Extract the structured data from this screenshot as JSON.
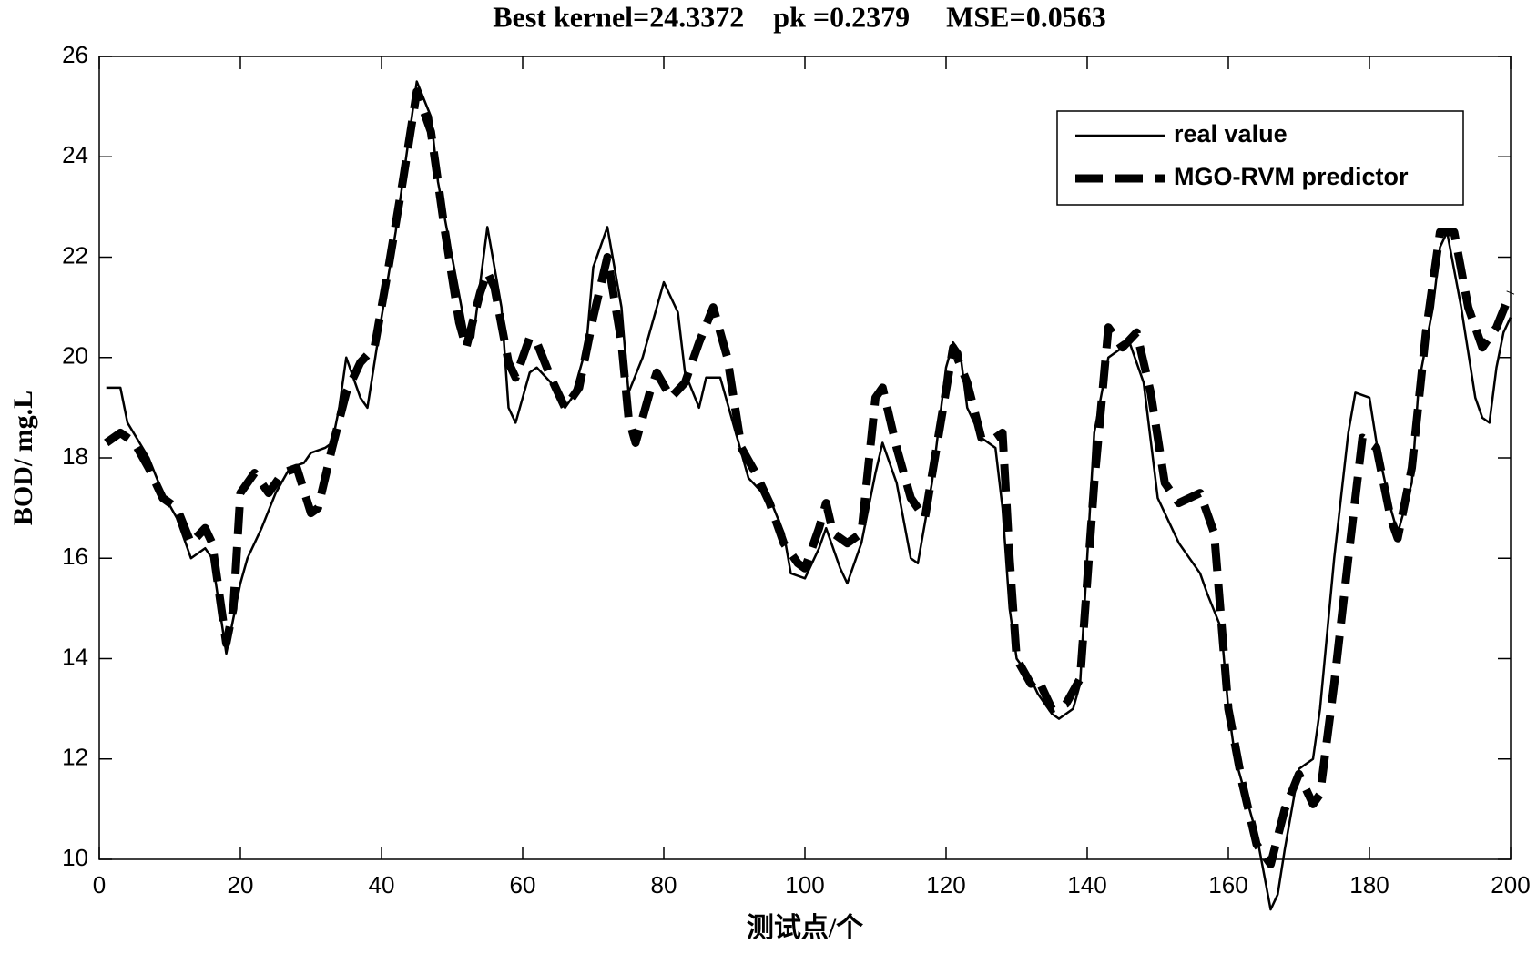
{
  "chart_data": {
    "type": "line",
    "title": "Best kernel=24.3372    pk =0.2379     MSE=0.0563",
    "xlabel": "测试点/个",
    "ylabel": "BOD/ mg.L",
    "xlim": [
      0,
      200
    ],
    "xticks": [
      0,
      20,
      40,
      60,
      80,
      100,
      120,
      140,
      160,
      180,
      200
    ],
    "ylim": [
      10,
      26
    ],
    "yticks": [
      10,
      12,
      14,
      16,
      18,
      20,
      22,
      24,
      26
    ],
    "legend": "upper right",
    "series": [
      {
        "name": "real value",
        "color": "#000000",
        "dash": "solid",
        "x": [
          1,
          3,
          4,
          7,
          9,
          11,
          13,
          15,
          16,
          18,
          20,
          21,
          23,
          25,
          27,
          29,
          30,
          32,
          33,
          34,
          35,
          37,
          38,
          40,
          42,
          44,
          45,
          47,
          48,
          50,
          52,
          53,
          54,
          55,
          57,
          58,
          59,
          61,
          62,
          64,
          66,
          67,
          69,
          70,
          72,
          74,
          75,
          77,
          79,
          80,
          82,
          83,
          85,
          86,
          88,
          90,
          92,
          94,
          95,
          97,
          98,
          100,
          102,
          103,
          105,
          106,
          108,
          110,
          111,
          113,
          115,
          116,
          118,
          120,
          121,
          122,
          123,
          125,
          127,
          128,
          129,
          130,
          132,
          133,
          135,
          136,
          138,
          139,
          140,
          141,
          143,
          145,
          146,
          148,
          150,
          153,
          156,
          157,
          159,
          160,
          161,
          164,
          166,
          167,
          168,
          170,
          171,
          172,
          173,
          175,
          177,
          178,
          180,
          181,
          183,
          184,
          186,
          187,
          189,
          190,
          191,
          193,
          195,
          196,
          197,
          198,
          199,
          200
        ],
        "values": [
          19.4,
          19.4,
          18.7,
          18.0,
          17.3,
          16.8,
          16.0,
          16.2,
          16.0,
          14.1,
          15.5,
          16.0,
          16.6,
          17.3,
          17.8,
          17.9,
          18.1,
          18.2,
          18.3,
          19.0,
          20.0,
          19.2,
          19.0,
          20.8,
          22.5,
          24.5,
          25.5,
          24.8,
          23.5,
          22.0,
          20.5,
          20.4,
          21.5,
          22.6,
          21.0,
          19.0,
          18.7,
          19.7,
          19.8,
          19.5,
          19.0,
          19.2,
          20.2,
          21.8,
          22.6,
          21.0,
          19.3,
          20.0,
          21.0,
          21.5,
          20.9,
          19.7,
          19.0,
          19.6,
          19.6,
          18.6,
          17.6,
          17.3,
          17.2,
          16.5,
          15.7,
          15.6,
          16.2,
          16.6,
          15.8,
          15.5,
          16.3,
          17.7,
          18.3,
          17.5,
          16.0,
          15.9,
          17.5,
          19.8,
          20.3,
          20.1,
          19.0,
          18.4,
          18.2,
          17.0,
          15.0,
          14.0,
          13.6,
          13.3,
          12.9,
          12.8,
          13.0,
          13.5,
          16.0,
          18.5,
          20.0,
          20.2,
          20.3,
          19.5,
          17.2,
          16.3,
          15.7,
          15.3,
          14.6,
          13.0,
          12.0,
          10.5,
          9.0,
          9.3,
          10.2,
          11.8,
          11.9,
          12.0,
          13.0,
          16.0,
          18.5,
          19.3,
          19.2,
          18.3,
          17.0,
          16.5,
          17.5,
          19.5,
          21.0,
          22.2,
          22.5,
          21.0,
          19.2,
          18.8,
          18.7,
          19.8,
          20.5,
          20.8
        ]
      },
      {
        "name": "MGO-RVM predictor",
        "color": "#000000",
        "dash": "dashed",
        "x": [
          1,
          3,
          5,
          7,
          9,
          11,
          13,
          15,
          16,
          18,
          19,
          20,
          22,
          24,
          26,
          28,
          30,
          31,
          33,
          35,
          37,
          39,
          41,
          43,
          45,
          47,
          49,
          51,
          52,
          54,
          55,
          56,
          58,
          59,
          61,
          62,
          64,
          66,
          68,
          70,
          72,
          74,
          75,
          76,
          78,
          79,
          81,
          83,
          85,
          87,
          89,
          91,
          93,
          95,
          97,
          99,
          100,
          102,
          103,
          104,
          106,
          108,
          110,
          111,
          113,
          115,
          117,
          119,
          121,
          123,
          125,
          127,
          128,
          129,
          130,
          132,
          133,
          135,
          137,
          139,
          141,
          143,
          145,
          147,
          149,
          151,
          153,
          156,
          158,
          160,
          162,
          164,
          166,
          168,
          170,
          172,
          173,
          175,
          177,
          179,
          181,
          183,
          184,
          186,
          188,
          190,
          192,
          194,
          196,
          198,
          200
        ],
        "values": [
          18.3,
          18.5,
          18.3,
          17.8,
          17.2,
          17.0,
          16.3,
          16.6,
          16.3,
          14.3,
          15.0,
          17.3,
          17.7,
          17.3,
          17.7,
          17.8,
          16.9,
          17.0,
          18.2,
          19.3,
          19.9,
          20.2,
          21.8,
          23.5,
          25.3,
          24.5,
          22.5,
          20.7,
          20.2,
          21.3,
          21.7,
          21.4,
          19.9,
          19.6,
          20.4,
          20.3,
          19.6,
          19.0,
          19.4,
          20.8,
          22.0,
          20.3,
          18.8,
          18.3,
          19.3,
          19.7,
          19.2,
          19.5,
          20.3,
          21.0,
          20.0,
          18.2,
          17.7,
          17.1,
          16.3,
          15.9,
          15.8,
          16.6,
          17.1,
          16.5,
          16.3,
          16.5,
          19.2,
          19.4,
          18.2,
          17.2,
          16.8,
          18.5,
          20.2,
          19.5,
          18.4,
          18.4,
          18.5,
          16.0,
          14.0,
          13.5,
          13.6,
          13.0,
          13.1,
          13.6,
          17.5,
          20.6,
          20.2,
          20.5,
          19.3,
          17.5,
          17.1,
          17.3,
          16.5,
          13.0,
          11.5,
          10.3,
          9.9,
          11.0,
          11.7,
          11.1,
          11.3,
          13.5,
          16.0,
          18.4,
          18.2,
          16.8,
          16.4,
          17.8,
          20.5,
          22.5,
          22.5,
          21.0,
          20.2,
          20.6,
          21.3
        ]
      }
    ]
  }
}
